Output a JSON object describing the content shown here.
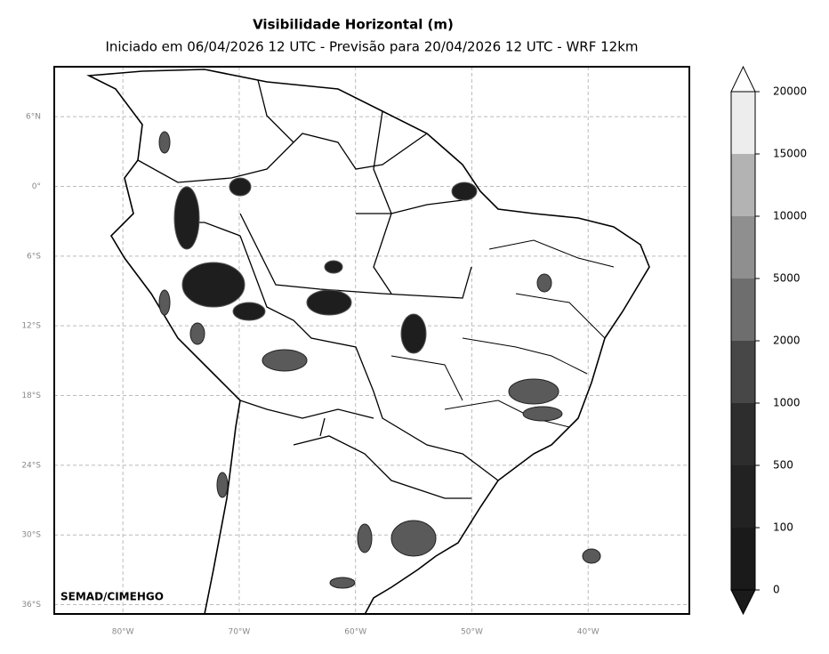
{
  "title": "Visibilidade Horizontal (m)",
  "subtitle": "Iniciado em 06/04/2026 12 UTC - Previsão para 20/04/2026 12 UTC - WRF 12km",
  "credit": "SEMAD/CIMEHGO",
  "map": {
    "xlim": [
      -85.9,
      -31.3
    ],
    "ylim": [
      -36.8,
      10.3
    ],
    "grid": true,
    "xticks": [
      {
        "value": -80,
        "label": "80°W"
      },
      {
        "value": -70,
        "label": "70°W"
      },
      {
        "value": -60,
        "label": "60°W"
      },
      {
        "value": -50,
        "label": "50°W"
      },
      {
        "value": -40,
        "label": "40°W"
      }
    ],
    "yticks": [
      {
        "value": 6,
        "label": "6°N"
      },
      {
        "value": 0,
        "label": "0°"
      },
      {
        "value": -6,
        "label": "6°S"
      },
      {
        "value": -12,
        "label": "12°S"
      },
      {
        "value": -18,
        "label": "18°S"
      },
      {
        "value": -24,
        "label": "24°S"
      },
      {
        "value": -30,
        "label": "30°S"
      },
      {
        "value": -36,
        "label": "36°S"
      }
    ]
  },
  "colorbar": {
    "levels": [
      0,
      100,
      500,
      1000,
      2000,
      5000,
      10000,
      15000,
      20000
    ],
    "colors": [
      "#1a1a1a",
      "#222222",
      "#2d2d2d",
      "#474747",
      "#6e6e6e",
      "#8f8f8f",
      "#b3b3b3",
      "#ededed"
    ],
    "extend_low_color": "#1a1a1a",
    "extend_high_color": "#ffffff"
  }
}
